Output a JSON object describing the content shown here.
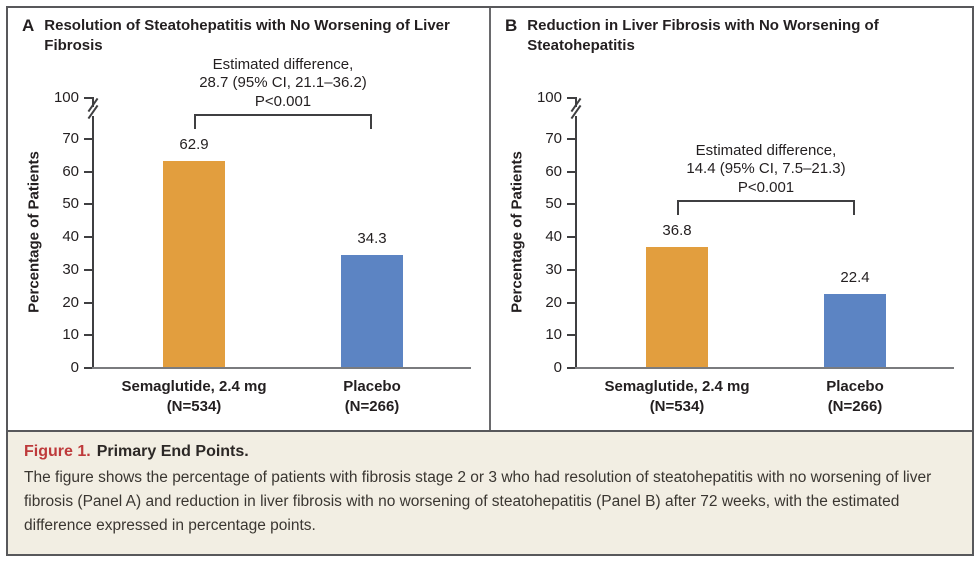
{
  "figure_caption": {
    "label": "Figure 1.",
    "title": "Primary End Points.",
    "body": "The figure shows the percentage of patients with fibrosis stage 2 or 3 who had resolution of steatohepatitis with no worsening of liver fibrosis (Panel A) and reduction in liver fibrosis with no worsening of steatohepatitis (Panel B) after 72 weeks, with the estimated difference expressed in percentage points."
  },
  "colors": {
    "semaglutide_bar": "#E29E3E",
    "placebo_bar": "#5C84C3",
    "figure_label_red": "#BE3A3B",
    "caption_background": "#F2EEE3",
    "axis_dark": "#3F3F41",
    "baseline_gray": "#7A7B7E"
  },
  "chart_data": [
    {
      "type": "bar",
      "panel_letter": "A",
      "title": "Resolution of Steatohepatitis with No Worsening of Liver Fibrosis",
      "ylabel": "Percentage of Patients",
      "yticks": [
        0,
        10,
        20,
        30,
        40,
        50,
        60,
        70,
        100
      ],
      "y_axis_break_between": [
        70,
        100
      ],
      "ylim": [
        0,
        100
      ],
      "grid": false,
      "categories": [
        [
          "Semaglutide, 2.4 mg",
          "(N=534)"
        ],
        [
          "Placebo",
          "(N=266)"
        ]
      ],
      "values": [
        62.9,
        34.3
      ],
      "series_colors": [
        "#E29E3E",
        "#5C84C3"
      ],
      "annotation_lines": [
        "Estimated difference,",
        "28.7 (95% CI, 21.1–36.2)",
        "P<0.001"
      ]
    },
    {
      "type": "bar",
      "panel_letter": "B",
      "title": "Reduction in Liver Fibrosis with No Worsening of Steatohepatitis",
      "ylabel": "Percentage of Patients",
      "yticks": [
        0,
        10,
        20,
        30,
        40,
        50,
        60,
        70,
        100
      ],
      "y_axis_break_between": [
        70,
        100
      ],
      "ylim": [
        0,
        100
      ],
      "grid": false,
      "categories": [
        [
          "Semaglutide, 2.4 mg",
          "(N=534)"
        ],
        [
          "Placebo",
          "(N=266)"
        ]
      ],
      "values": [
        36.8,
        22.4
      ],
      "series_colors": [
        "#E29E3E",
        "#5C84C3"
      ],
      "annotation_lines": [
        "Estimated difference,",
        "14.4 (95% CI, 7.5–21.3)",
        "P<0.001"
      ]
    }
  ]
}
